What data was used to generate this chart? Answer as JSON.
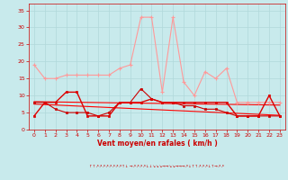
{
  "hours": [
    0,
    1,
    2,
    3,
    4,
    5,
    6,
    7,
    8,
    9,
    10,
    11,
    12,
    13,
    14,
    15,
    16,
    17,
    18,
    19,
    20,
    21,
    22,
    23
  ],
  "rafales": [
    19,
    15,
    15,
    16,
    16,
    16,
    16,
    16,
    18,
    19,
    33,
    33,
    11,
    33,
    14,
    10,
    17,
    15,
    18,
    8,
    8,
    8,
    8,
    8
  ],
  "vent_moyen": [
    4,
    8,
    8,
    11,
    11,
    4,
    4,
    4,
    8,
    8,
    8,
    9,
    8,
    8,
    8,
    8,
    8,
    8,
    8,
    4,
    4,
    4,
    10,
    4
  ],
  "wind_jagged": [
    8,
    8,
    6,
    5,
    5,
    5,
    4,
    5,
    8,
    8,
    12,
    9,
    8,
    8,
    7,
    7,
    6,
    6,
    5,
    4,
    4,
    4,
    4,
    4
  ],
  "trend1_x": [
    0,
    23
  ],
  "trend1_y": [
    8.2,
    7.2
  ],
  "trend2_x": [
    0,
    23
  ],
  "trend2_y": [
    7.5,
    4.2
  ],
  "bg_color": "#c8eaec",
  "grid_color": "#b0d8da",
  "rafales_color": "#ff9999",
  "vent_color": "#dd0000",
  "jagged_color": "#cc0000",
  "trend_color": "#ff0000",
  "xlabel": "Vent moyen/en rafales ( km/h )",
  "xlabel_color": "#cc0000",
  "tick_color": "#cc0000",
  "ylim": [
    0,
    37
  ],
  "xlim": [
    -0.5,
    23.5
  ],
  "yticks": [
    0,
    5,
    10,
    15,
    20,
    25,
    30,
    35
  ],
  "arrow_text": "↑↑↗↗↗↗↗↗↗↗↑↓ →↗↗↗↗↓↓↘↘↘→→↘↘→→→↗↓↑↑↗↗↗↓↑→↗↗"
}
